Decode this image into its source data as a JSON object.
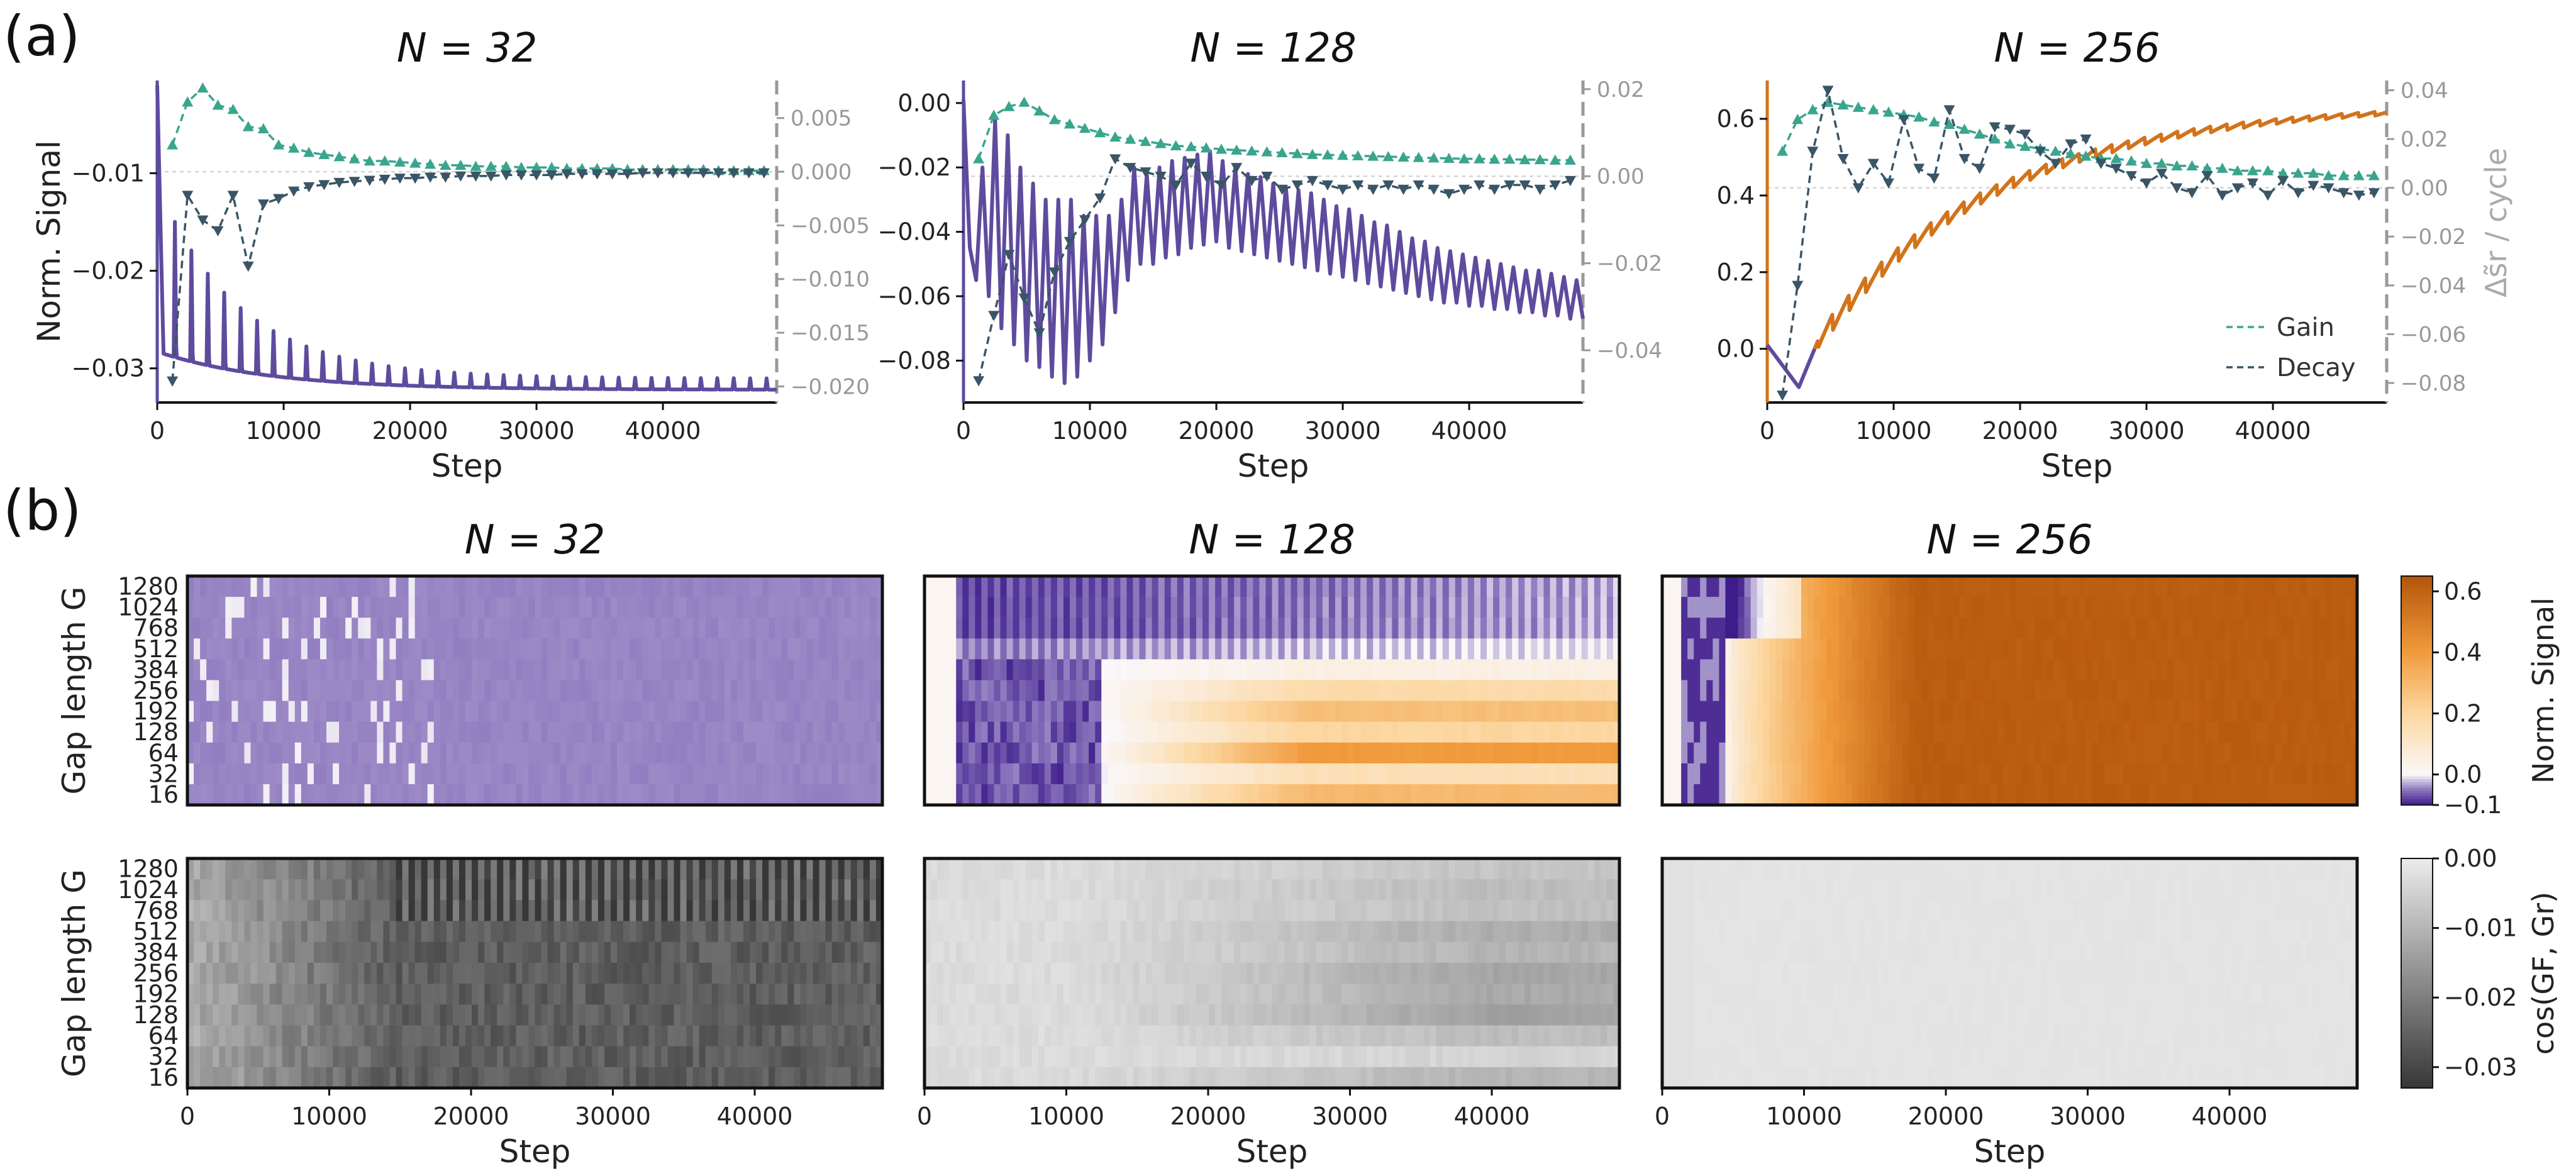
{
  "panel_labels": [
    "(a)",
    "(b)"
  ],
  "colors": {
    "purple": "#5e4b9e",
    "orange": "#d2731b",
    "gain": "#3aa58e",
    "decay": "#3a5566",
    "right_axis": "#999999"
  },
  "chart_data": [
    {
      "type": "line",
      "panel": "a",
      "title": "N = 32",
      "xlabel": "Step",
      "ylabel": "Norm. Signal",
      "ylabel_right": "",
      "xlim": [
        0,
        49000
      ],
      "ylim": [
        -0.0335,
        -0.0005
      ],
      "ylim_right": [
        -0.0215,
        0.0085
      ],
      "xticks": [
        "0",
        "10000",
        "20000",
        "30000",
        "40000"
      ],
      "yticks": [
        -0.03,
        -0.02,
        -0.01
      ],
      "yticks_labels": [
        "−0.03",
        "−0.02",
        "−0.01"
      ],
      "yticks_right": [
        -0.02,
        -0.015,
        -0.01,
        -0.005,
        0.0,
        0.005
      ],
      "yticks_right_labels": [
        "−0.020",
        "−0.015",
        "−0.010",
        "−0.005",
        "0.000",
        "0.005"
      ],
      "signal": {
        "start": -0.001,
        "min": -0.0285,
        "base_end": -0.0322,
        "spike_start": -0.0155,
        "spike_end": -0.031,
        "period": 1300,
        "trend_tau": 9000
      },
      "gain": {
        "x": [
          1200,
          2400,
          3600,
          4800,
          6000,
          7200,
          8400,
          9600,
          10800,
          12000,
          13200,
          14400,
          15600,
          16800,
          18000,
          19200,
          20400,
          21600,
          22800,
          24000,
          25200,
          26400,
          27600,
          28800,
          30000,
          31200,
          32400,
          33600,
          34800,
          36000,
          37200,
          38400,
          39600,
          40800,
          42000,
          43200,
          44400,
          45600,
          46800,
          48000
        ],
        "y": [
          0.0025,
          0.0065,
          0.0078,
          0.0062,
          0.0058,
          0.0042,
          0.004,
          0.0025,
          0.0022,
          0.0018,
          0.0016,
          0.0014,
          0.0012,
          0.001,
          0.001,
          0.0009,
          0.0008,
          0.0007,
          0.0006,
          0.0006,
          0.0005,
          0.0005,
          0.0005,
          0.0004,
          0.0004,
          0.0004,
          0.0003,
          0.0003,
          0.0003,
          0.0003,
          0.0002,
          0.0002,
          0.0002,
          0.0002,
          0.0002,
          0.0002,
          0.0001,
          0.0001,
          0.0001,
          0.0001
        ]
      },
      "decay": {
        "x": [
          1200,
          2400,
          3600,
          4800,
          6000,
          7200,
          8400,
          9600,
          10800,
          12000,
          13200,
          14400,
          15600,
          16800,
          18000,
          19200,
          20400,
          21600,
          22800,
          24000,
          25200,
          26400,
          27600,
          28800,
          30000,
          31200,
          32400,
          33600,
          34800,
          36000,
          37200,
          38400,
          39600,
          40800,
          42000,
          43200,
          44400,
          45600,
          46800,
          48000
        ],
        "y": [
          -0.0195,
          -0.0022,
          -0.0045,
          -0.0055,
          -0.0022,
          -0.0088,
          -0.003,
          -0.0025,
          -0.0018,
          -0.0014,
          -0.0012,
          -0.001,
          -0.0009,
          -0.0008,
          -0.0007,
          -0.0006,
          -0.0006,
          -0.0005,
          -0.0005,
          -0.0004,
          -0.0004,
          -0.0004,
          -0.0003,
          -0.0003,
          -0.0003,
          -0.0003,
          -0.0002,
          -0.0002,
          -0.0002,
          -0.0002,
          -0.0002,
          -0.0001,
          -0.0001,
          -0.0001,
          -0.0001,
          -0.0001,
          -0.0001,
          -0.0001,
          -0.0001,
          -0.0001
        ]
      }
    },
    {
      "type": "line",
      "panel": "a",
      "title": "N = 128",
      "xlabel": "Step",
      "ylabel": "",
      "ylabel_right": "",
      "xlim": [
        0,
        49000
      ],
      "ylim": [
        -0.093,
        0.007
      ],
      "ylim_right": [
        -0.052,
        0.022
      ],
      "xticks": [
        "0",
        "10000",
        "20000",
        "30000",
        "40000"
      ],
      "yticks": [
        -0.08,
        -0.06,
        -0.04,
        -0.02,
        0.0
      ],
      "yticks_labels": [
        "−0.08",
        "−0.06",
        "−0.04",
        "−0.02",
        "0.00"
      ],
      "yticks_right": [
        -0.04,
        -0.02,
        0.0,
        0.02
      ],
      "yticks_right_labels": [
        "−0.04",
        "−0.02",
        "0.00",
        "0.02"
      ],
      "signal_points": {
        "x": [
          0,
          500,
          1000,
          1500,
          2000,
          2500,
          3000,
          3500,
          4000,
          4500,
          5000,
          5500,
          6000,
          6500,
          7000,
          7500,
          8000,
          8500,
          9000,
          9500,
          10000,
          10500,
          11000,
          11500,
          12000,
          12500,
          13000,
          13500,
          14000,
          14500,
          15000,
          15500,
          16000,
          16500,
          17000,
          17500,
          18000,
          18500,
          19000,
          19500,
          20000,
          20500,
          21000,
          21500,
          22000,
          22500,
          23000,
          23500,
          24000,
          24500,
          25000,
          25500,
          26000,
          26500,
          27000,
          27500,
          28000,
          28500,
          29000,
          29500,
          30000,
          30500,
          31000,
          31500,
          32000,
          32500,
          33000,
          33500,
          34000,
          34500,
          35000,
          35500,
          36000,
          36500,
          37000,
          37500,
          38000,
          38500,
          39000,
          39500,
          40000,
          40500,
          41000,
          41500,
          42000,
          42500,
          43000,
          43500,
          44000,
          44500,
          45000,
          45500,
          46000,
          46500,
          47000,
          47500,
          48000,
          48500,
          49000
        ],
        "y": [
          0.001,
          -0.045,
          -0.055,
          -0.02,
          -0.06,
          -0.005,
          -0.07,
          -0.01,
          -0.075,
          -0.02,
          -0.08,
          -0.025,
          -0.082,
          -0.03,
          -0.085,
          -0.03,
          -0.087,
          -0.03,
          -0.085,
          -0.035,
          -0.08,
          -0.035,
          -0.075,
          -0.035,
          -0.065,
          -0.03,
          -0.055,
          -0.02,
          -0.05,
          -0.022,
          -0.05,
          -0.02,
          -0.048,
          -0.018,
          -0.047,
          -0.017,
          -0.045,
          -0.016,
          -0.044,
          -0.015,
          -0.043,
          -0.018,
          -0.045,
          -0.02,
          -0.046,
          -0.022,
          -0.047,
          -0.023,
          -0.048,
          -0.025,
          -0.049,
          -0.026,
          -0.05,
          -0.027,
          -0.051,
          -0.028,
          -0.052,
          -0.03,
          -0.053,
          -0.032,
          -0.054,
          -0.033,
          -0.055,
          -0.035,
          -0.056,
          -0.037,
          -0.057,
          -0.038,
          -0.058,
          -0.04,
          -0.059,
          -0.042,
          -0.06,
          -0.043,
          -0.061,
          -0.045,
          -0.062,
          -0.046,
          -0.062,
          -0.047,
          -0.063,
          -0.048,
          -0.063,
          -0.049,
          -0.064,
          -0.05,
          -0.064,
          -0.051,
          -0.065,
          -0.052,
          -0.065,
          -0.052,
          -0.066,
          -0.053,
          -0.066,
          -0.054,
          -0.067,
          -0.055,
          -0.067
        ]
      },
      "gain": {
        "x": [
          1200,
          2400,
          3600,
          4800,
          6000,
          7200,
          8400,
          9600,
          10800,
          12000,
          13200,
          14400,
          15600,
          16800,
          18000,
          19200,
          20400,
          21600,
          22800,
          24000,
          25200,
          26400,
          27600,
          28800,
          30000,
          31200,
          32400,
          33600,
          34800,
          36000,
          37200,
          38400,
          39600,
          40800,
          42000,
          43200,
          44400,
          45600,
          46800,
          48000
        ],
        "y": [
          0.004,
          0.014,
          0.016,
          0.017,
          0.015,
          0.013,
          0.012,
          0.011,
          0.01,
          0.009,
          0.0085,
          0.008,
          0.0075,
          0.007,
          0.0068,
          0.0065,
          0.0062,
          0.006,
          0.0058,
          0.0056,
          0.0054,
          0.0052,
          0.005,
          0.0049,
          0.0048,
          0.0047,
          0.0046,
          0.0045,
          0.0044,
          0.0043,
          0.0042,
          0.0041,
          0.004,
          0.004,
          0.0039,
          0.0039,
          0.0038,
          0.0038,
          0.0037,
          0.0037
        ]
      },
      "decay": {
        "x": [
          1200,
          2400,
          3600,
          4800,
          6000,
          7200,
          8400,
          9600,
          10800,
          12000,
          13200,
          14400,
          15600,
          16800,
          18000,
          19200,
          20400,
          21600,
          22800,
          24000,
          25200,
          26400,
          27600,
          28800,
          30000,
          31200,
          32400,
          33600,
          34800,
          36000,
          37200,
          38400,
          39600,
          40800,
          42000,
          43200,
          44400,
          45600,
          46800,
          48000
        ],
        "y": [
          -0.047,
          -0.032,
          -0.018,
          -0.028,
          -0.036,
          -0.022,
          -0.015,
          -0.01,
          -0.005,
          0.004,
          0.002,
          0.001,
          0.0,
          -0.002,
          0.003,
          0.0,
          -0.002,
          0.002,
          -0.001,
          0.0,
          -0.003,
          -0.002,
          -0.001,
          -0.002,
          -0.003,
          -0.002,
          -0.003,
          -0.002,
          -0.003,
          -0.002,
          -0.003,
          -0.004,
          -0.003,
          -0.002,
          -0.003,
          -0.002,
          -0.002,
          -0.003,
          -0.002,
          -0.001
        ]
      }
    },
    {
      "type": "line",
      "panel": "a",
      "title": "N = 256",
      "xlabel": "Step",
      "ylabel": "",
      "ylabel_right": "Δs̃r / cycle",
      "xlim": [
        0,
        49000
      ],
      "ylim": [
        -0.14,
        0.7
      ],
      "ylim_right": [
        -0.088,
        0.044
      ],
      "xticks": [
        "0",
        "10000",
        "20000",
        "30000",
        "40000"
      ],
      "yticks": [
        0.0,
        0.2,
        0.4,
        0.6
      ],
      "yticks_labels": [
        "0.0",
        "0.2",
        "0.4",
        "0.6"
      ],
      "yticks_right": [
        -0.08,
        -0.06,
        -0.04,
        -0.02,
        0.0,
        0.02,
        0.04
      ],
      "yticks_right_labels": [
        "−0.08",
        "−0.06",
        "−0.04",
        "−0.02",
        "0.00",
        "0.02",
        "0.04"
      ],
      "signal": {
        "start": 0.01,
        "dip": -0.1,
        "dip_step": 2500,
        "end": 0.64,
        "period": 1300
      },
      "gain": {
        "x": [
          1200,
          2400,
          3600,
          4800,
          6000,
          7200,
          8400,
          9600,
          10800,
          12000,
          13200,
          14400,
          15600,
          16800,
          18000,
          19200,
          20400,
          21600,
          22800,
          24000,
          25200,
          26400,
          27600,
          28800,
          30000,
          31200,
          32400,
          33600,
          34800,
          36000,
          37200,
          38400,
          39600,
          40800,
          42000,
          43200,
          44400,
          45600,
          46800,
          48000
        ],
        "y": [
          0.015,
          0.028,
          0.032,
          0.035,
          0.034,
          0.033,
          0.032,
          0.031,
          0.03,
          0.029,
          0.027,
          0.026,
          0.024,
          0.022,
          0.02,
          0.018,
          0.017,
          0.016,
          0.015,
          0.014,
          0.013,
          0.012,
          0.012,
          0.011,
          0.01,
          0.01,
          0.009,
          0.009,
          0.008,
          0.008,
          0.007,
          0.007,
          0.007,
          0.006,
          0.006,
          0.006,
          0.005,
          0.005,
          0.005,
          0.005
        ]
      },
      "decay": {
        "x": [
          1200,
          2400,
          3600,
          4800,
          6000,
          7200,
          8400,
          9600,
          10800,
          12000,
          13200,
          14400,
          15600,
          16800,
          18000,
          19200,
          20400,
          21600,
          22800,
          24000,
          25200,
          26400,
          27600,
          28800,
          30000,
          31200,
          32400,
          33600,
          34800,
          36000,
          37200,
          38400,
          39600,
          40800,
          42000,
          43200,
          44400,
          45600,
          46800,
          48000
        ],
        "y": [
          -0.085,
          -0.04,
          0.015,
          0.04,
          0.012,
          0.0,
          0.01,
          0.002,
          0.028,
          0.008,
          0.004,
          0.032,
          0.012,
          0.008,
          0.025,
          0.024,
          0.022,
          0.015,
          0.01,
          0.018,
          0.02,
          0.01,
          0.008,
          0.005,
          0.002,
          0.006,
          0.0,
          -0.002,
          0.005,
          -0.003,
          0.0,
          0.002,
          -0.003,
          0.003,
          -0.002,
          0.001,
          0.0,
          -0.002,
          -0.003,
          -0.002
        ]
      },
      "legend": [
        {
          "name": "Gain",
          "color": "#3aa58e",
          "marker": "up"
        },
        {
          "name": "Decay",
          "color": "#3a5566",
          "marker": "down"
        }
      ],
      "legend_position": "bottom-right"
    },
    {
      "type": "heatmap",
      "panel": "b",
      "row": 1,
      "titles": [
        "N = 32",
        "N = 128",
        "N = 256"
      ],
      "ylabel": "Gap length G",
      "yticks": [
        "1280",
        "1024",
        "768",
        "512",
        "384",
        "256",
        "192",
        "128",
        "64",
        "32",
        "16"
      ],
      "colorbar": {
        "label": "Norm. Signal",
        "ticks": [
          0.6,
          0.4,
          0.2,
          0.0,
          -0.1
        ],
        "tick_labels": [
          "0.6",
          "0.4",
          "0.2",
          "0.0",
          "−0.1"
        ],
        "range": [
          -0.1,
          0.65
        ],
        "colormap": "purple-white-orange"
      }
    },
    {
      "type": "heatmap",
      "panel": "b",
      "row": 2,
      "ylabel": "Gap length G",
      "xlabel": "Step",
      "xlim": [
        0,
        49000
      ],
      "xticks": [
        "0",
        "10000",
        "20000",
        "30000",
        "40000"
      ],
      "yticks": [
        "1280",
        "1024",
        "768",
        "512",
        "384",
        "256",
        "192",
        "128",
        "64",
        "32",
        "16"
      ],
      "colorbar": {
        "label": "cos(GF, Gr)",
        "ticks": [
          0.0,
          -0.01,
          -0.02,
          -0.03
        ],
        "tick_labels": [
          "0.00",
          "−0.01",
          "−0.02",
          "−0.03"
        ],
        "range": [
          -0.033,
          0.0
        ],
        "colormap": "gray"
      }
    }
  ]
}
